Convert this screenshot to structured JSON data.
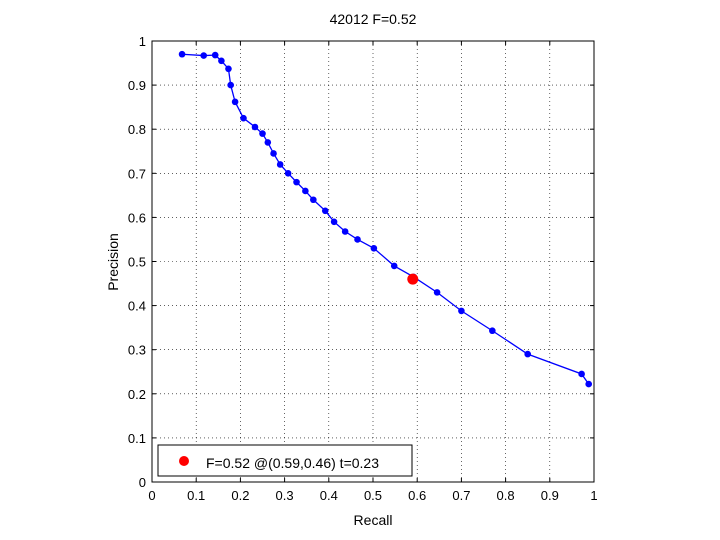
{
  "chart_data": {
    "type": "line",
    "title": "42012 F=0.52",
    "xlabel": "Recall",
    "ylabel": "Precision",
    "xlim": [
      0,
      1
    ],
    "ylim": [
      0,
      1
    ],
    "xticks": [
      0,
      0.1,
      0.2,
      0.3,
      0.4,
      0.5,
      0.6,
      0.7,
      0.8,
      0.9,
      1
    ],
    "yticks": [
      0,
      0.1,
      0.2,
      0.3,
      0.4,
      0.5,
      0.6,
      0.7,
      0.8,
      0.9,
      1
    ],
    "xtick_labels": [
      "0",
      "0.1",
      "0.2",
      "0.3",
      "0.4",
      "0.5",
      "0.6",
      "0.7",
      "0.8",
      "0.9",
      "1"
    ],
    "ytick_labels": [
      "0",
      "0.1",
      "0.2",
      "0.3",
      "0.4",
      "0.5",
      "0.6",
      "0.7",
      "0.8",
      "0.9",
      "1"
    ],
    "grid": true,
    "legend_position": "bottom-left",
    "series": [
      {
        "color": "#0000ff",
        "marker": "dot",
        "x": [
          0.068,
          0.117,
          0.143,
          0.157,
          0.173,
          0.178,
          0.188,
          0.207,
          0.233,
          0.25,
          0.262,
          0.275,
          0.29,
          0.308,
          0.327,
          0.347,
          0.365,
          0.392,
          0.412,
          0.437,
          0.465,
          0.502,
          0.548,
          0.592,
          0.645,
          0.7,
          0.77,
          0.85,
          0.972,
          0.988
        ],
        "y": [
          0.97,
          0.967,
          0.968,
          0.955,
          0.937,
          0.9,
          0.862,
          0.825,
          0.805,
          0.79,
          0.77,
          0.745,
          0.72,
          0.7,
          0.68,
          0.66,
          0.64,
          0.615,
          0.59,
          0.568,
          0.55,
          0.53,
          0.49,
          0.465,
          0.43,
          0.388,
          0.343,
          0.29,
          0.245,
          0.222
        ]
      }
    ],
    "best_point": {
      "x": 0.59,
      "y": 0.46,
      "color": "#ff0000"
    },
    "legend": {
      "label": "F=0.52 @(0.59,0.46) t=0.23"
    }
  }
}
